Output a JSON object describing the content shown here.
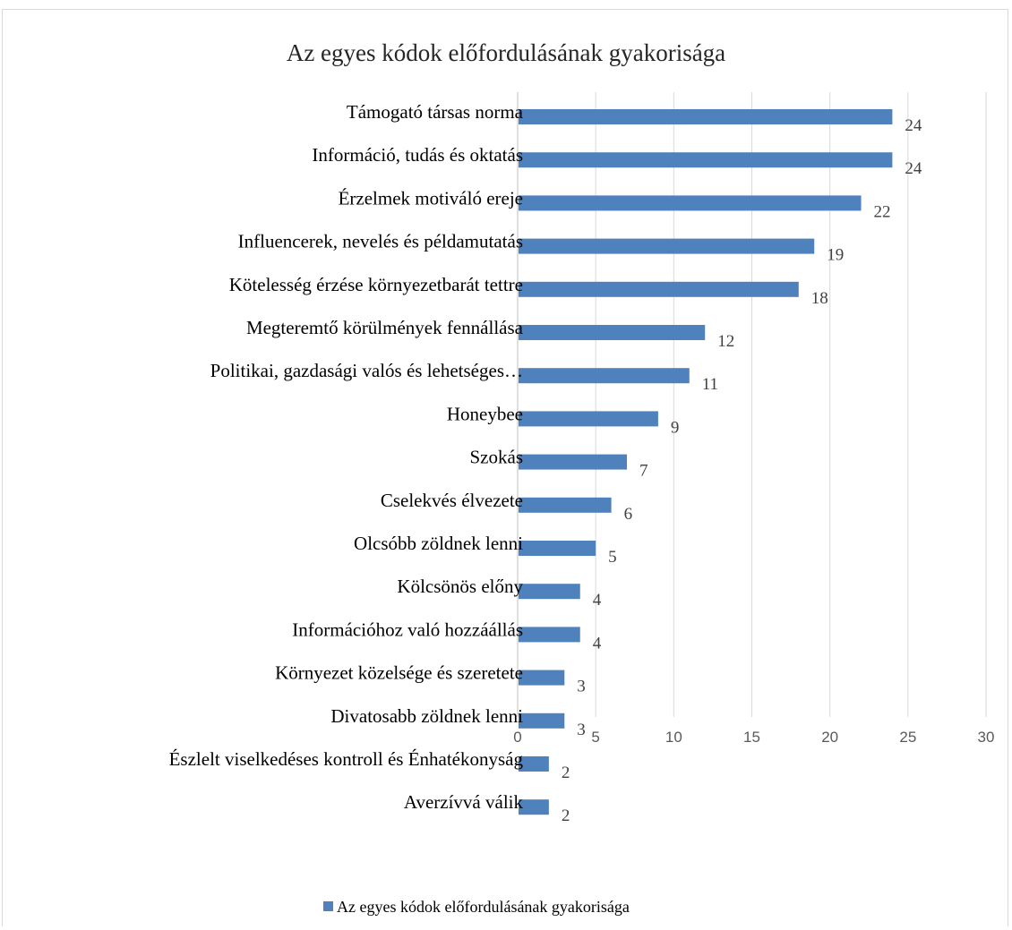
{
  "chart_data": {
    "type": "bar",
    "orientation": "horizontal",
    "title": "Az egyes kódok előfordulásának gyakorisága",
    "categories": [
      "Támogató társas norma",
      "Információ, tudás és oktatás",
      "Érzelmek motiváló ereje",
      "Influencerek, nevelés és példamutatás",
      "Kötelesség érzése környezetbarát tettre",
      "Megteremtő körülmények fennállása",
      "Politikai, gazdasági valós és lehetséges…",
      "Honeybee",
      "Szokás",
      "Cselekvés élvezete",
      "Olcsóbb zöldnek lenni",
      "Kölcsönös előny",
      "Információhoz való hozzáállás",
      "Környezet közelsége és szeretete",
      "Divatosabb zöldnek lenni",
      "Észlelt viselkedéses kontroll és Énhatékonyság",
      "Averzívvá válik"
    ],
    "series": [
      {
        "name": "Az egyes kódok előfordulásának gyakorisága",
        "color": "#4f81bd",
        "values": [
          24,
          24,
          22,
          19,
          18,
          12,
          11,
          9,
          7,
          6,
          5,
          4,
          4,
          3,
          3,
          2,
          2
        ]
      }
    ],
    "xlim": [
      0,
      30
    ],
    "xticks": [
      "0",
      "5",
      "10",
      "15",
      "20",
      "25",
      "30"
    ],
    "grid": true,
    "legend_position": "bottom"
  }
}
